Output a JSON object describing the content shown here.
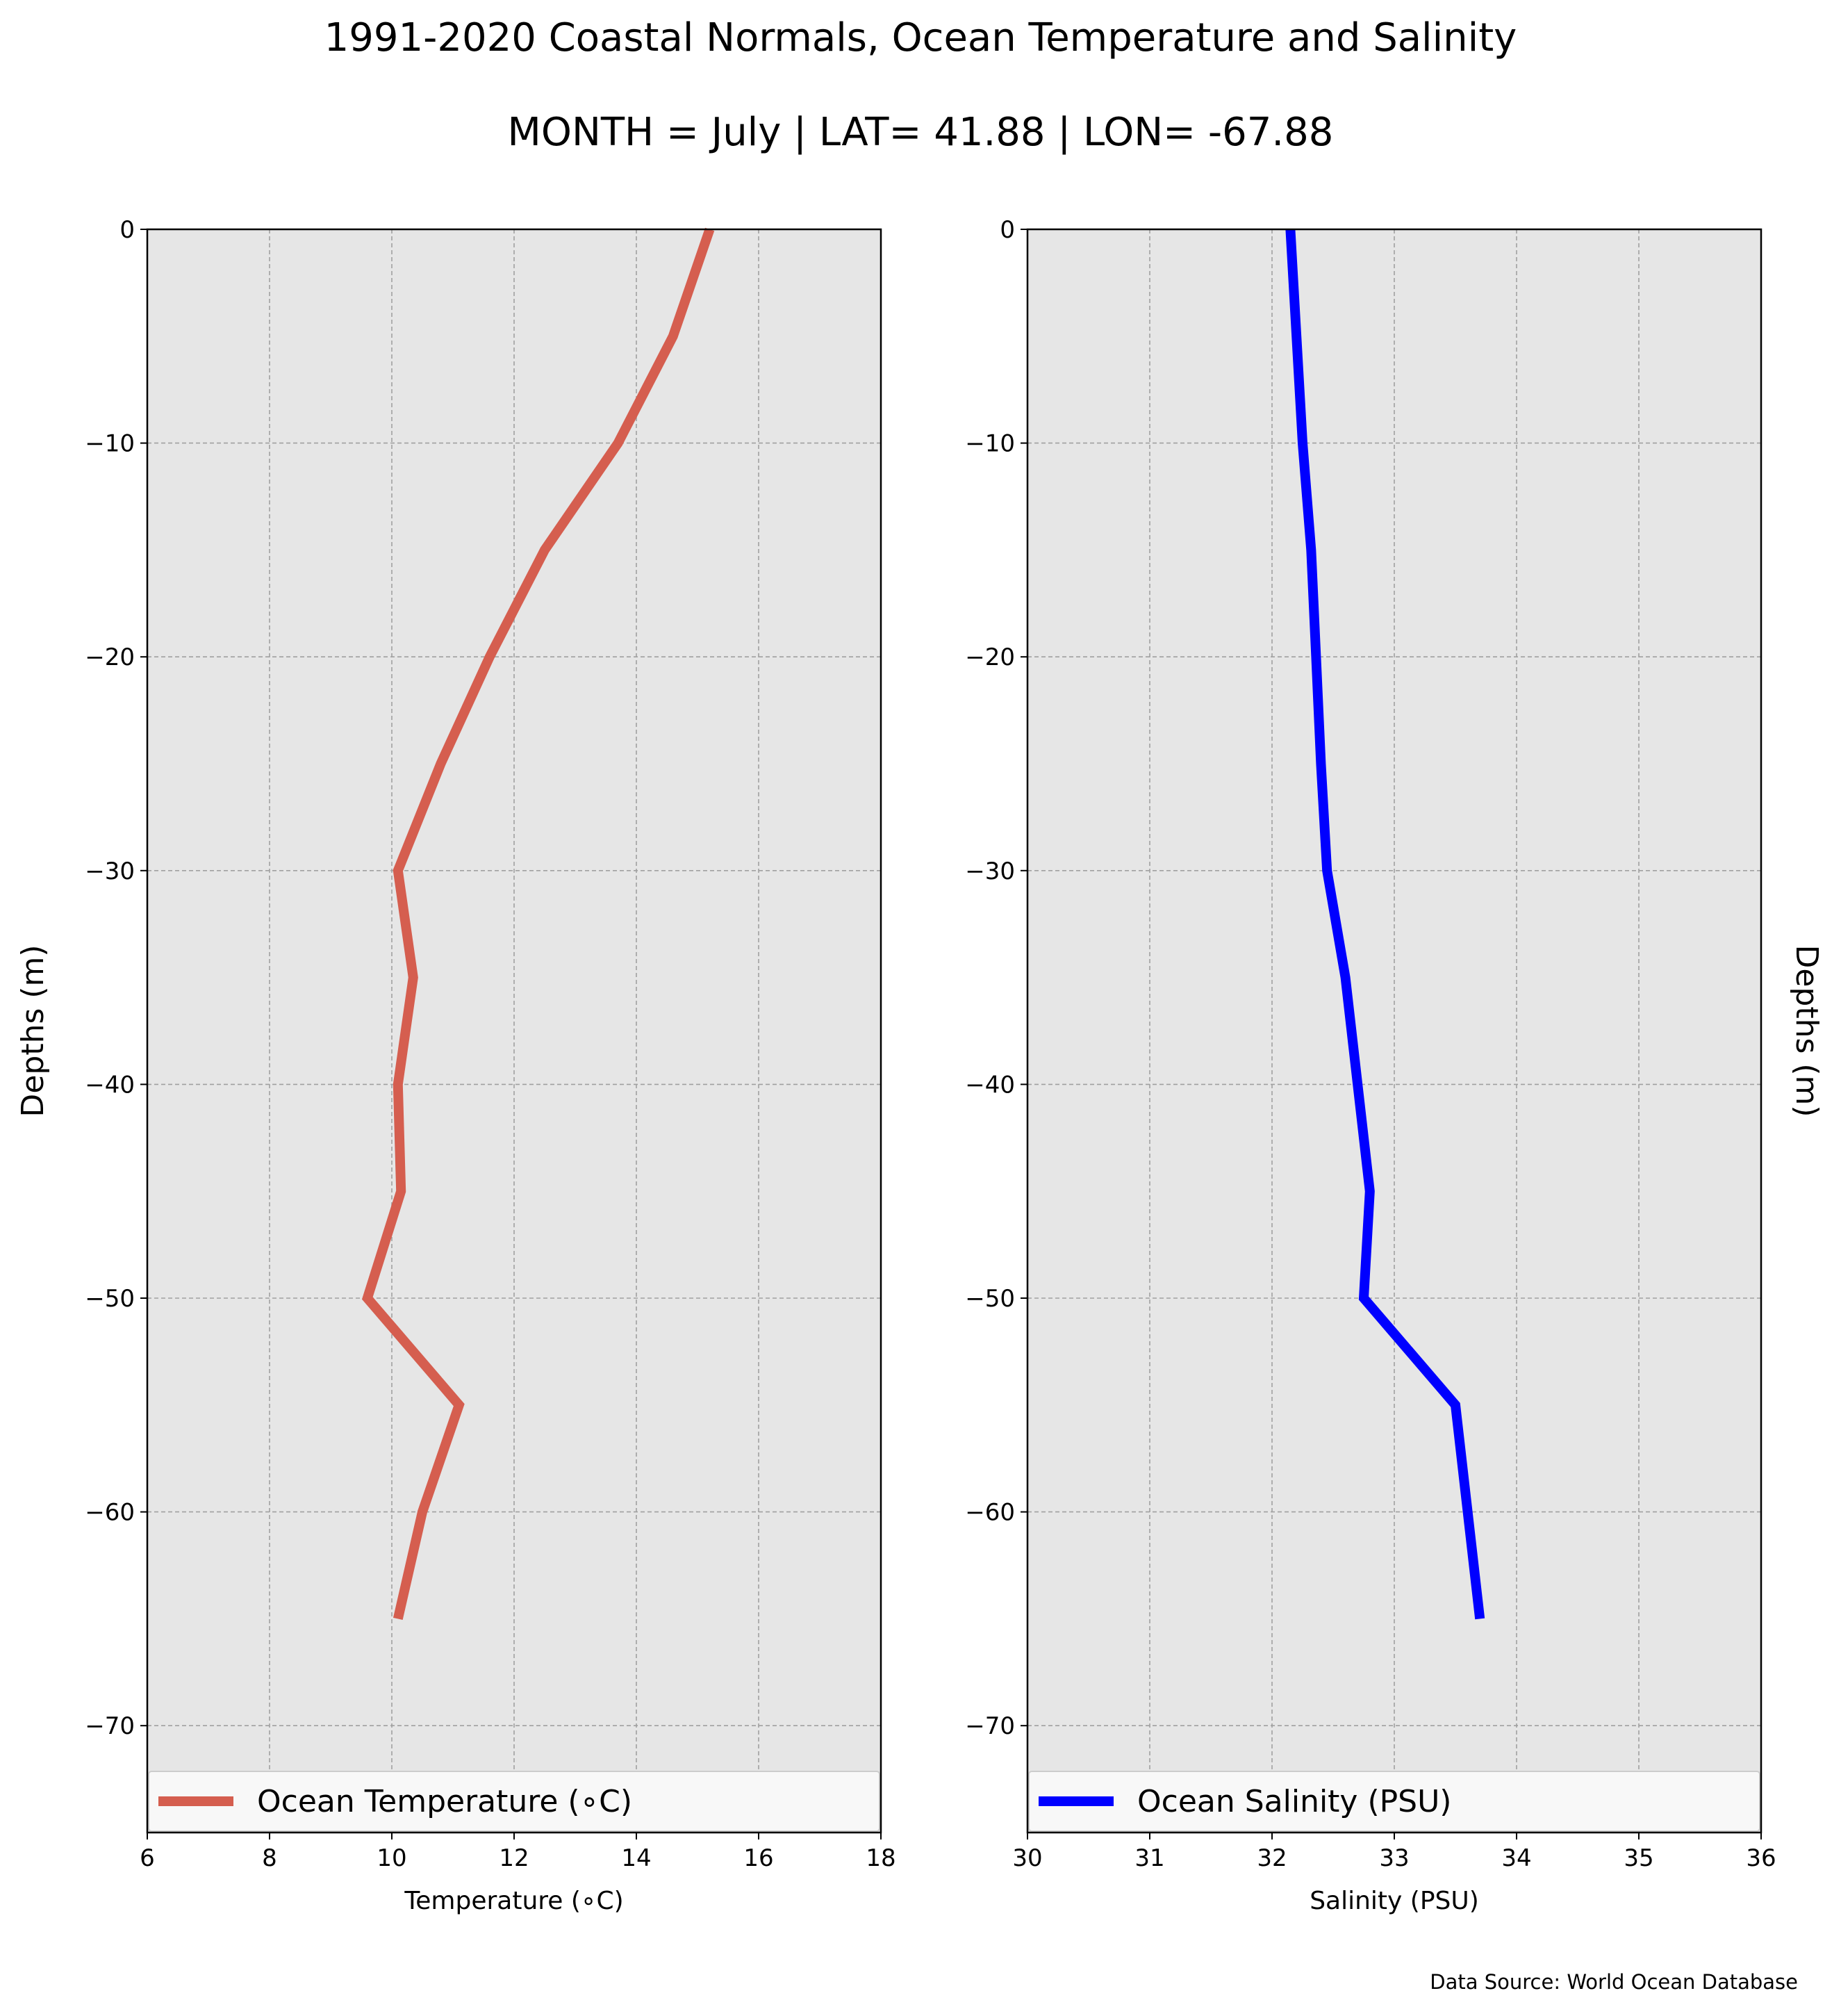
{
  "title": "1991-2020 Coastal Normals, Ocean Temperature and Salinity",
  "subtitle": "MONTH = July | LAT= 41.88 | LON= -67.88",
  "source": "Data Source: World Ocean Database",
  "colors": {
    "plot_bg": "#e6e6e6",
    "grid": "#a0a0a0",
    "temperature": "#d55e4f",
    "salinity": "#0000ff"
  },
  "chart_data": [
    {
      "type": "line",
      "xlabel": "Temperature ($^\\circ$C)",
      "xlabel_display": "Temperature (∘C)",
      "ylabel": "Depths (m)",
      "xlim": [
        6,
        18
      ],
      "ylim": [
        -75,
        0
      ],
      "xticks": [
        "6",
        "8",
        "10",
        "12",
        "14",
        "16",
        "18"
      ],
      "yticks": [
        "0",
        "−10",
        "−20",
        "−30",
        "−40",
        "−50",
        "−60",
        "−70"
      ],
      "grid": true,
      "legend_position": "bottom",
      "series": [
        {
          "name": "Ocean Temperature (∘C)",
          "x": [
            15.2,
            14.6,
            13.7,
            12.5,
            11.6,
            10.8,
            10.1,
            10.35,
            10.1,
            10.15,
            9.6,
            11.1,
            10.5,
            10.1
          ],
          "y": [
            0,
            -5,
            -10,
            -15,
            -20,
            -25,
            -30,
            -35,
            -40,
            -45,
            -50,
            -55,
            -60,
            -65
          ]
        }
      ]
    },
    {
      "type": "line",
      "xlabel": "Salinity (PSU)",
      "ylabel": "Depths (m)",
      "xlim": [
        30,
        36
      ],
      "ylim": [
        -75,
        0
      ],
      "xticks": [
        "30",
        "31",
        "32",
        "33",
        "34",
        "35",
        "36"
      ],
      "yticks": [
        "0",
        "−10",
        "−20",
        "−30",
        "−40",
        "−50",
        "−60",
        "−70"
      ],
      "grid": true,
      "legend_position": "bottom",
      "series": [
        {
          "name": "Ocean Salinity (PSU)",
          "x": [
            32.15,
            32.2,
            32.25,
            32.32,
            32.36,
            32.4,
            32.45,
            32.6,
            32.7,
            32.8,
            32.75,
            33.5,
            33.6,
            33.7
          ],
          "y": [
            0,
            -5,
            -10,
            -15,
            -20,
            -25,
            -30,
            -35,
            -40,
            -45,
            -50,
            -55,
            -60,
            -65
          ]
        }
      ]
    }
  ]
}
